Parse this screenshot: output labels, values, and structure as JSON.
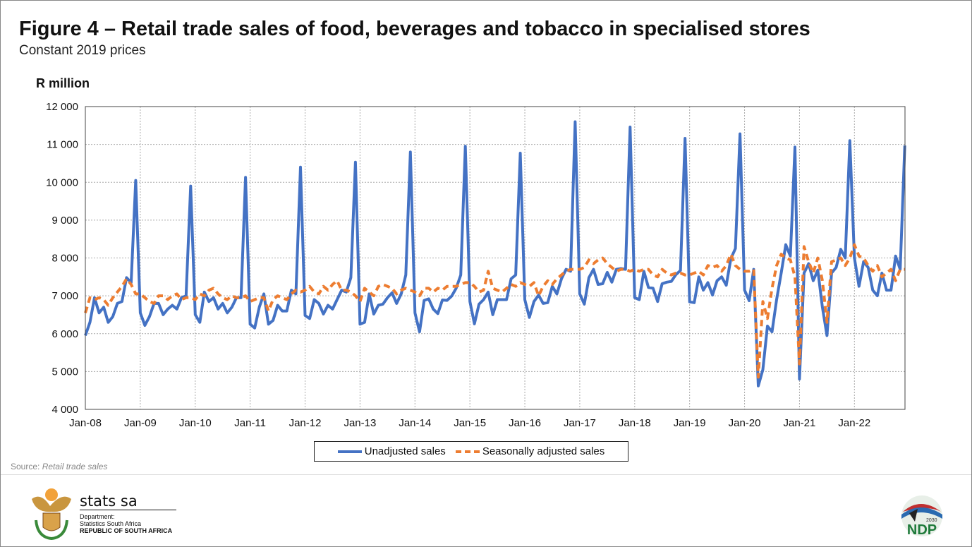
{
  "header": {
    "title": "Figure 4 – Retail trade sales of food, beverages and tobacco in specialised stores",
    "subtitle": "Constant 2019 prices",
    "unit_label": "R million"
  },
  "footer": {
    "source_prefix": "Source: ",
    "source_name": "Retail trade sales",
    "org_name": "stats sa",
    "dept_line1": "Department:",
    "dept_line2": "Statistics South Africa",
    "dept_line3": "REPUBLIC OF SOUTH AFRICA",
    "ndp_text": "NDP",
    "ndp_year": "2030"
  },
  "chart_data": {
    "type": "line",
    "title": "Figure 4 – Retail trade sales of food, beverages and tobacco in specialised stores",
    "subtitle": "Constant 2019 prices",
    "xlabel": "",
    "ylabel": "R million",
    "ylim": [
      4000,
      12000
    ],
    "yticks": [
      4000,
      5000,
      6000,
      7000,
      8000,
      9000,
      10000,
      11000,
      12000
    ],
    "ytick_labels": [
      "4 000",
      "5 000",
      "6 000",
      "7 000",
      "8 000",
      "9 000",
      "10 000",
      "11 000",
      "12 000"
    ],
    "xtick_labels": [
      "Jan-08",
      "Jan-09",
      "Jan-10",
      "Jan-11",
      "Jan-12",
      "Jan-13",
      "Jan-14",
      "Jan-15",
      "Jan-16",
      "Jan-17",
      "Jan-18",
      "Jan-19",
      "Jan-20",
      "Jan-21",
      "Jan-22"
    ],
    "x_start": "Jan-08",
    "frequency": "monthly",
    "grid": true,
    "legend_position": "bottom",
    "series": [
      {
        "name": "Unadjusted sales",
        "color": "#4472C4",
        "style": "solid",
        "values": [
          5950,
          6300,
          6950,
          6550,
          6700,
          6300,
          6450,
          6800,
          6850,
          7480,
          7350,
          10050,
          6550,
          6220,
          6450,
          6800,
          6800,
          6500,
          6650,
          6750,
          6650,
          6950,
          7000,
          9900,
          6500,
          6300,
          7100,
          6850,
          6950,
          6650,
          6800,
          6550,
          6700,
          6950,
          6950,
          10130,
          6250,
          6150,
          6700,
          7050,
          6250,
          6350,
          6750,
          6600,
          6600,
          7150,
          7050,
          10400,
          6480,
          6400,
          6900,
          6800,
          6520,
          6750,
          6650,
          6900,
          7150,
          7100,
          7480,
          10530,
          6250,
          6300,
          7050,
          6520,
          6750,
          6780,
          6950,
          7080,
          6800,
          7050,
          7550,
          10800,
          6550,
          6050,
          6880,
          6920,
          6650,
          6530,
          6890,
          6880,
          6990,
          7200,
          7550,
          10950,
          6850,
          6260,
          6780,
          6900,
          7100,
          6500,
          6900,
          6900,
          6900,
          7450,
          7550,
          10770,
          6900,
          6430,
          6850,
          7020,
          6800,
          6820,
          7250,
          7050,
          7450,
          7700,
          7650,
          11600,
          7050,
          6780,
          7480,
          7700,
          7300,
          7320,
          7620,
          7360,
          7700,
          7720,
          7700,
          11460,
          6950,
          6900,
          7650,
          7220,
          7200,
          6850,
          7320,
          7360,
          7380,
          7560,
          7670,
          11160,
          6840,
          6820,
          7500,
          7150,
          7350,
          7020,
          7400,
          7500,
          7280,
          7980,
          8250,
          11280,
          7150,
          6870,
          7700,
          4620,
          5050,
          6200,
          6050,
          6900,
          7600,
          8350,
          8050,
          10930,
          4800,
          7600,
          7850,
          7400,
          7680,
          6700,
          5950,
          7600,
          7750,
          8230,
          8000,
          11100,
          8000,
          7250,
          7900,
          7750,
          7150,
          7000,
          7600,
          7150,
          7150,
          8050,
          7700,
          10970
        ]
      },
      {
        "name": "Seasonally adjusted sales",
        "color": "#ED7D31",
        "style": "dashed",
        "values": [
          6550,
          6950,
          6900,
          6950,
          6900,
          6750,
          6950,
          7100,
          7250,
          7450,
          7300,
          7050,
          7050,
          6950,
          6850,
          6800,
          7000,
          7000,
          6900,
          7000,
          7050,
          6900,
          6950,
          6950,
          6900,
          7050,
          7000,
          7150,
          7200,
          7050,
          6950,
          6900,
          7000,
          6950,
          6950,
          7000,
          6850,
          6900,
          6950,
          6950,
          6600,
          6900,
          7000,
          6950,
          6900,
          7050,
          7150,
          7100,
          7150,
          7250,
          7100,
          7050,
          7250,
          7150,
          7300,
          7400,
          7150,
          7150,
          7100,
          7000,
          6850,
          7200,
          7100,
          7000,
          7250,
          7300,
          7250,
          7200,
          7050,
          7150,
          7200,
          7150,
          7100,
          7000,
          7200,
          7200,
          7100,
          7200,
          7150,
          7250,
          7250,
          7250,
          7300,
          7350,
          7350,
          7250,
          7100,
          7150,
          7650,
          7200,
          7150,
          7100,
          7200,
          7300,
          7250,
          7350,
          7300,
          7250,
          7350,
          7000,
          7250,
          7400,
          7300,
          7450,
          7550,
          7650,
          7700,
          7700,
          7700,
          7750,
          7950,
          7850,
          7950,
          8000,
          7850,
          7750,
          7650,
          7700,
          7700,
          7650,
          7700,
          7650,
          7700,
          7700,
          7550,
          7500,
          7700,
          7600,
          7550,
          7600,
          7600,
          7550,
          7550,
          7600,
          7650,
          7550,
          7800,
          7750,
          7800,
          7650,
          7800,
          8100,
          7800,
          7700,
          7650,
          7650,
          7700,
          4850,
          6850,
          6400,
          7200,
          7800,
          8100,
          8000,
          7950,
          7500,
          5200,
          8300,
          7900,
          7600,
          8000,
          7400,
          6300,
          7900,
          7950,
          8000,
          7800,
          8000,
          8350,
          8050,
          8000,
          7800,
          7650,
          7800,
          7500,
          7600,
          7700,
          7400,
          7700,
          7700
        ]
      }
    ]
  }
}
